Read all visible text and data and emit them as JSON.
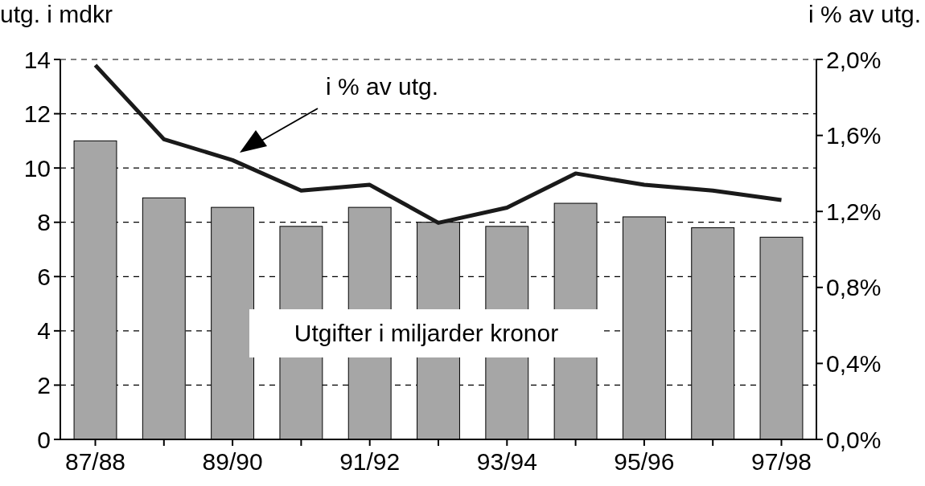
{
  "chart_data": {
    "type": "bar",
    "ylabel": "utg. i mdkr",
    "y2label": "i % av utg.",
    "categories": [
      "87/88",
      null,
      "89/90",
      null,
      "91/92",
      null,
      "93/94",
      null,
      "95/96",
      null,
      "97/98"
    ],
    "series": [
      {
        "color": "#a6a6a6",
        "values": [
          11.0,
          8.9,
          8.55,
          7.85,
          8.55,
          8.0,
          7.85,
          8.7,
          8.2,
          7.8,
          7.45
        ]
      },
      {
        "type": "line",
        "axis": "y2",
        "color": "#1a1a1a",
        "values": [
          1.97,
          1.58,
          1.47,
          1.31,
          1.34,
          1.14,
          1.22,
          1.4,
          1.34,
          1.31,
          1.26
        ]
      }
    ],
    "ylim": [
      0,
      14
    ],
    "yticks": [
      0,
      2,
      4,
      6,
      8,
      10,
      12,
      14
    ],
    "y2lim": [
      0,
      2
    ],
    "y2ticks": [
      {
        "value": 0,
        "label": "0,0%"
      },
      {
        "value": 0.4,
        "label": "0,4%"
      },
      {
        "value": 0.8,
        "label": "0,8%"
      },
      {
        "value": 1.2,
        "label": "1,2%"
      },
      {
        "value": 1.6,
        "label": "1,6%"
      },
      {
        "value": 2,
        "label": "2,0%"
      }
    ],
    "grid": "y",
    "marker": "none",
    "line_style": "solid",
    "annotations": [
      "i % av utg.",
      "Utgifter i miljarder kronor"
    ]
  }
}
